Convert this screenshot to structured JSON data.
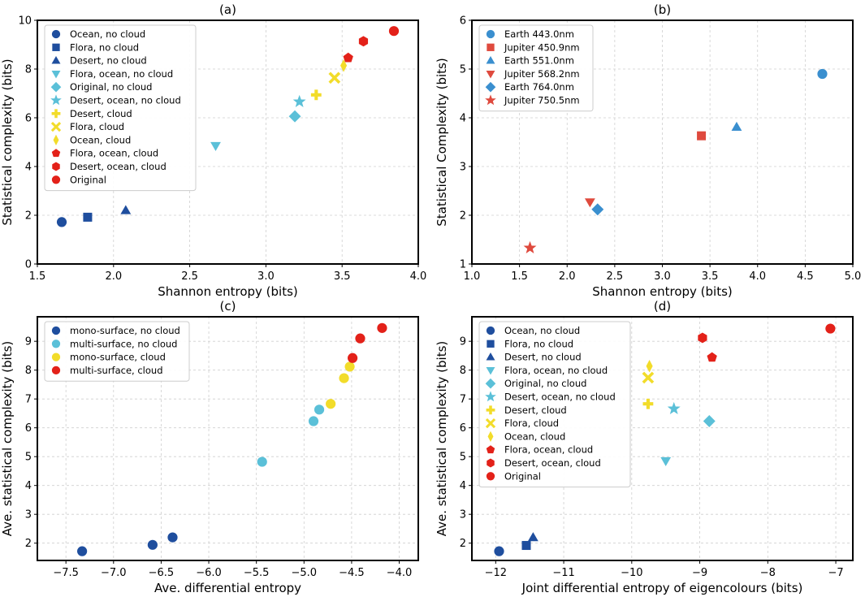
{
  "colors": {
    "dark_blue": "#1f4e9e",
    "light_blue": "#5bc0d8",
    "yellow": "#f2dc2a",
    "red": "#e32119",
    "earth_blue": "#3a8fcf",
    "jupiter_red": "#df4a3e"
  },
  "chart_data": [
    {
      "type": "scatter",
      "title": "(a)",
      "xlabel": "Shannon entropy (bits)",
      "ylabel": "Statistical complexity (bits)",
      "xlim": [
        1.5,
        4.0
      ],
      "ylim": [
        0,
        10
      ],
      "xticks": [
        1.5,
        2.0,
        2.5,
        3.0,
        3.5,
        4.0
      ],
      "yticks": [
        0,
        2,
        4,
        6,
        8,
        10
      ],
      "xtick_labels": [
        "1.5",
        "2.0",
        "2.5",
        "3.0",
        "3.5",
        "4.0"
      ],
      "ytick_labels": [
        "0",
        "2",
        "4",
        "6",
        "8",
        "10"
      ],
      "grid": true,
      "legend_position": "top-left",
      "series": [
        {
          "name": "Ocean, no cloud",
          "marker": "circle",
          "color": "#1f4e9e",
          "x": [
            1.66
          ],
          "y": [
            1.72
          ]
        },
        {
          "name": "Flora, no cloud",
          "marker": "square",
          "color": "#1f4e9e",
          "x": [
            1.83
          ],
          "y": [
            1.92
          ]
        },
        {
          "name": "Desert, no cloud",
          "marker": "triangle-up",
          "color": "#1f4e9e",
          "x": [
            2.08
          ],
          "y": [
            2.2
          ]
        },
        {
          "name": "Flora, ocean, no cloud",
          "marker": "triangle-down",
          "color": "#5bc0d8",
          "x": [
            2.67
          ],
          "y": [
            4.85
          ]
        },
        {
          "name": "Original, no cloud",
          "marker": "diamond",
          "color": "#5bc0d8",
          "x": [
            3.19
          ],
          "y": [
            6.06
          ]
        },
        {
          "name": "Desert, ocean, no cloud",
          "marker": "star",
          "color": "#5bc0d8",
          "x": [
            3.22
          ],
          "y": [
            6.66
          ]
        },
        {
          "name": "Desert, cloud",
          "marker": "plus",
          "color": "#f2dc2a",
          "x": [
            3.33
          ],
          "y": [
            6.94
          ]
        },
        {
          "name": "Flora, cloud",
          "marker": "x",
          "color": "#f2dc2a",
          "x": [
            3.45
          ],
          "y": [
            7.64
          ]
        },
        {
          "name": "Ocean, cloud",
          "marker": "thin-diamond",
          "color": "#f2dc2a",
          "x": [
            3.51
          ],
          "y": [
            8.14
          ]
        },
        {
          "name": "Flora, ocean, cloud",
          "marker": "pentagon",
          "color": "#e32119",
          "x": [
            3.54
          ],
          "y": [
            8.46
          ]
        },
        {
          "name": "Desert, ocean, cloud",
          "marker": "hexagon",
          "color": "#e32119",
          "x": [
            3.64
          ],
          "y": [
            9.14
          ]
        },
        {
          "name": "Original",
          "marker": "circle",
          "color": "#e32119",
          "x": [
            3.84
          ],
          "y": [
            9.56
          ]
        }
      ]
    },
    {
      "type": "scatter",
      "title": "(b)",
      "xlabel": "Shannon entropy (bits)",
      "ylabel": "Statistical Complexity (bits)",
      "xlim": [
        1.0,
        5.0
      ],
      "ylim": [
        1,
        6
      ],
      "xticks": [
        1.0,
        1.5,
        2.0,
        2.5,
        3.0,
        3.5,
        4.0,
        4.5,
        5.0
      ],
      "yticks": [
        1,
        2,
        3,
        4,
        5,
        6
      ],
      "xtick_labels": [
        "1.0",
        "1.5",
        "2.0",
        "2.5",
        "3.0",
        "3.5",
        "4.0",
        "4.5",
        "5.0"
      ],
      "ytick_labels": [
        "1",
        "2",
        "3",
        "4",
        "5",
        "6"
      ],
      "grid": true,
      "legend_position": "top-left",
      "series": [
        {
          "name": "Earth 443.0nm",
          "marker": "circle",
          "color": "#3a8fcf",
          "x": [
            4.68
          ],
          "y": [
            4.9
          ]
        },
        {
          "name": "Jupiter 450.9nm",
          "marker": "square",
          "color": "#df4a3e",
          "x": [
            3.41
          ],
          "y": [
            3.63
          ]
        },
        {
          "name": "Earth 551.0nm",
          "marker": "triangle-up",
          "color": "#3a8fcf",
          "x": [
            3.78
          ],
          "y": [
            3.81
          ]
        },
        {
          "name": "Jupiter 568.2nm",
          "marker": "triangle-down",
          "color": "#df4a3e",
          "x": [
            2.24
          ],
          "y": [
            2.27
          ]
        },
        {
          "name": "Earth 764.0nm",
          "marker": "diamond",
          "color": "#3a8fcf",
          "x": [
            2.32
          ],
          "y": [
            2.12
          ]
        },
        {
          "name": "Jupiter 750.5nm",
          "marker": "star",
          "color": "#df4a3e",
          "x": [
            1.61
          ],
          "y": [
            1.33
          ]
        }
      ]
    },
    {
      "type": "scatter",
      "title": "(c)",
      "xlabel": "Ave. differential entropy",
      "ylabel": "Ave. statistical complexity (bits)",
      "xlim": [
        -7.8,
        -3.8
      ],
      "ylim": [
        1.4,
        9.85
      ],
      "xticks": [
        -7.5,
        -7.0,
        -6.5,
        -6.0,
        -5.5,
        -5.0,
        -4.5,
        -4.0
      ],
      "yticks": [
        2,
        3,
        4,
        5,
        6,
        7,
        8,
        9
      ],
      "xtick_labels": [
        "−7.5",
        "−7.0",
        "−6.5",
        "−6.0",
        "−5.5",
        "−5.0",
        "−4.5",
        "−4.0"
      ],
      "ytick_labels": [
        "2",
        "3",
        "4",
        "5",
        "6",
        "7",
        "8",
        "9"
      ],
      "grid": true,
      "legend_position": "top-left",
      "series": [
        {
          "name": "mono-surface, no cloud",
          "marker": "circle",
          "color": "#1f4e9e",
          "x": [
            -7.33,
            -6.59,
            -6.38
          ],
          "y": [
            1.72,
            1.94,
            2.2
          ]
        },
        {
          "name": "multi-surface, no cloud",
          "marker": "circle",
          "color": "#5bc0d8",
          "x": [
            -5.44,
            -4.9,
            -4.84
          ],
          "y": [
            4.82,
            6.23,
            6.63
          ]
        },
        {
          "name": "mono-surface, cloud",
          "marker": "circle",
          "color": "#f2dc2a",
          "x": [
            -4.72,
            -4.58,
            -4.52
          ],
          "y": [
            6.83,
            7.72,
            8.12
          ]
        },
        {
          "name": "multi-surface, cloud",
          "marker": "circle",
          "color": "#e32119",
          "x": [
            -4.49,
            -4.41,
            -4.18
          ],
          "y": [
            8.42,
            9.1,
            9.46
          ]
        }
      ]
    },
    {
      "type": "scatter",
      "title": "(d)",
      "xlabel": "Joint differential entropy of eigencolours (bits)",
      "ylabel": "Ave. statistical complexity (bits)",
      "xlim": [
        -12.35,
        -6.75
      ],
      "ylim": [
        1.4,
        9.85
      ],
      "xticks": [
        -12,
        -11,
        -10,
        -9,
        -8,
        -7
      ],
      "yticks": [
        2,
        3,
        4,
        5,
        6,
        7,
        8,
        9
      ],
      "xtick_labels": [
        "−12",
        "−11",
        "−10",
        "−9",
        "−8",
        "−7"
      ],
      "ytick_labels": [
        "2",
        "3",
        "4",
        "5",
        "6",
        "7",
        "8",
        "9"
      ],
      "grid": true,
      "legend_position": "top-left",
      "series": [
        {
          "name": "Ocean, no cloud",
          "marker": "circle",
          "color": "#1f4e9e",
          "x": [
            -11.95
          ],
          "y": [
            1.72
          ]
        },
        {
          "name": "Flora, no cloud",
          "marker": "square",
          "color": "#1f4e9e",
          "x": [
            -11.55
          ],
          "y": [
            1.92
          ]
        },
        {
          "name": "Desert, no cloud",
          "marker": "triangle-up",
          "color": "#1f4e9e",
          "x": [
            -11.45
          ],
          "y": [
            2.2
          ]
        },
        {
          "name": "Flora, ocean, no cloud",
          "marker": "triangle-down",
          "color": "#5bc0d8",
          "x": [
            -9.5
          ],
          "y": [
            4.85
          ]
        },
        {
          "name": "Original, no cloud",
          "marker": "diamond",
          "color": "#5bc0d8",
          "x": [
            -8.86
          ],
          "y": [
            6.23
          ]
        },
        {
          "name": "Desert, ocean, no cloud",
          "marker": "star",
          "color": "#5bc0d8",
          "x": [
            -9.38
          ],
          "y": [
            6.66
          ]
        },
        {
          "name": "Desert, cloud",
          "marker": "plus",
          "color": "#f2dc2a",
          "x": [
            -9.76
          ],
          "y": [
            6.83
          ]
        },
        {
          "name": "Flora, cloud",
          "marker": "x",
          "color": "#f2dc2a",
          "x": [
            -9.76
          ],
          "y": [
            7.74
          ]
        },
        {
          "name": "Ocean, cloud",
          "marker": "thin-diamond",
          "color": "#f2dc2a",
          "x": [
            -9.74
          ],
          "y": [
            8.14
          ]
        },
        {
          "name": "Flora, ocean, cloud",
          "marker": "pentagon",
          "color": "#e32119",
          "x": [
            -8.82
          ],
          "y": [
            8.44
          ]
        },
        {
          "name": "Desert, ocean, cloud",
          "marker": "hexagon",
          "color": "#e32119",
          "x": [
            -8.96
          ],
          "y": [
            9.12
          ]
        },
        {
          "name": "Original",
          "marker": "circle",
          "color": "#e32119",
          "x": [
            -7.08
          ],
          "y": [
            9.44
          ]
        }
      ]
    }
  ]
}
